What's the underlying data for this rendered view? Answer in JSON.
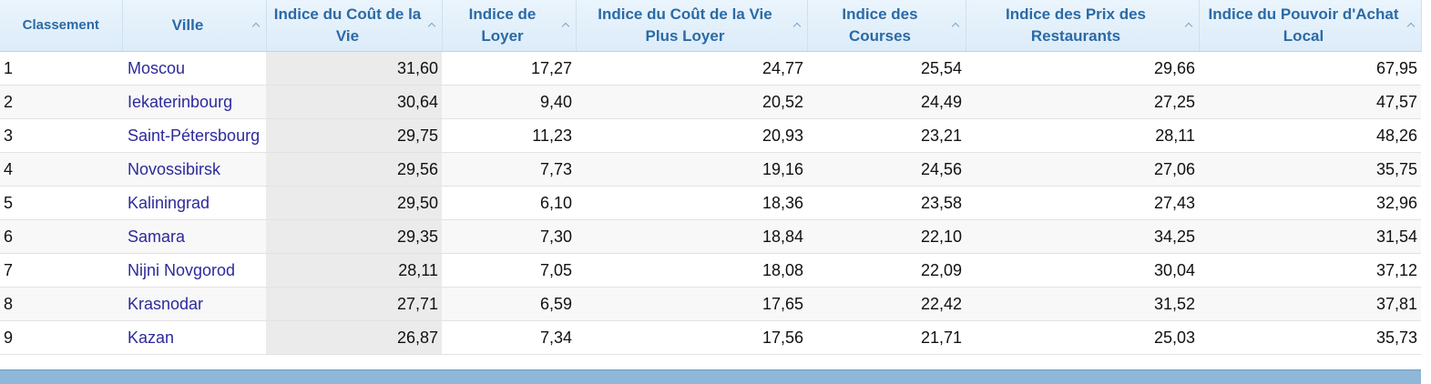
{
  "table": {
    "headers": [
      "Classement",
      "Ville",
      "Indice du Coût de la Vie",
      "Indice de Loyer",
      "Indice du Coût de la Vie Plus Loyer",
      "Indice des Courses",
      "Indice des Prix des Restaurants",
      "Indice du Pouvoir d'Achat Local"
    ],
    "rows": [
      [
        "1",
        "Moscou",
        "31,60",
        "17,27",
        "24,77",
        "25,54",
        "29,66",
        "67,95"
      ],
      [
        "2",
        "Iekaterinbourg",
        "30,64",
        "9,40",
        "20,52",
        "24,49",
        "27,25",
        "47,57"
      ],
      [
        "3",
        "Saint-Pétersbourg",
        "29,75",
        "11,23",
        "20,93",
        "23,21",
        "28,11",
        "48,26"
      ],
      [
        "4",
        "Novossibirsk",
        "29,56",
        "7,73",
        "19,16",
        "24,56",
        "27,06",
        "35,75"
      ],
      [
        "5",
        "Kaliningrad",
        "29,50",
        "6,10",
        "18,36",
        "23,58",
        "27,43",
        "32,96"
      ],
      [
        "6",
        "Samara",
        "29,35",
        "7,30",
        "18,84",
        "22,10",
        "34,25",
        "31,54"
      ],
      [
        "7",
        "Nijni Novgorod",
        "28,11",
        "7,05",
        "18,08",
        "22,09",
        "30,04",
        "37,12"
      ],
      [
        "8",
        "Krasnodar",
        "27,71",
        "6,59",
        "17,65",
        "22,42",
        "31,52",
        "37,81"
      ],
      [
        "9",
        "Kazan",
        "26,87",
        "7,34",
        "17,56",
        "21,71",
        "25,03",
        "35,73"
      ]
    ]
  }
}
